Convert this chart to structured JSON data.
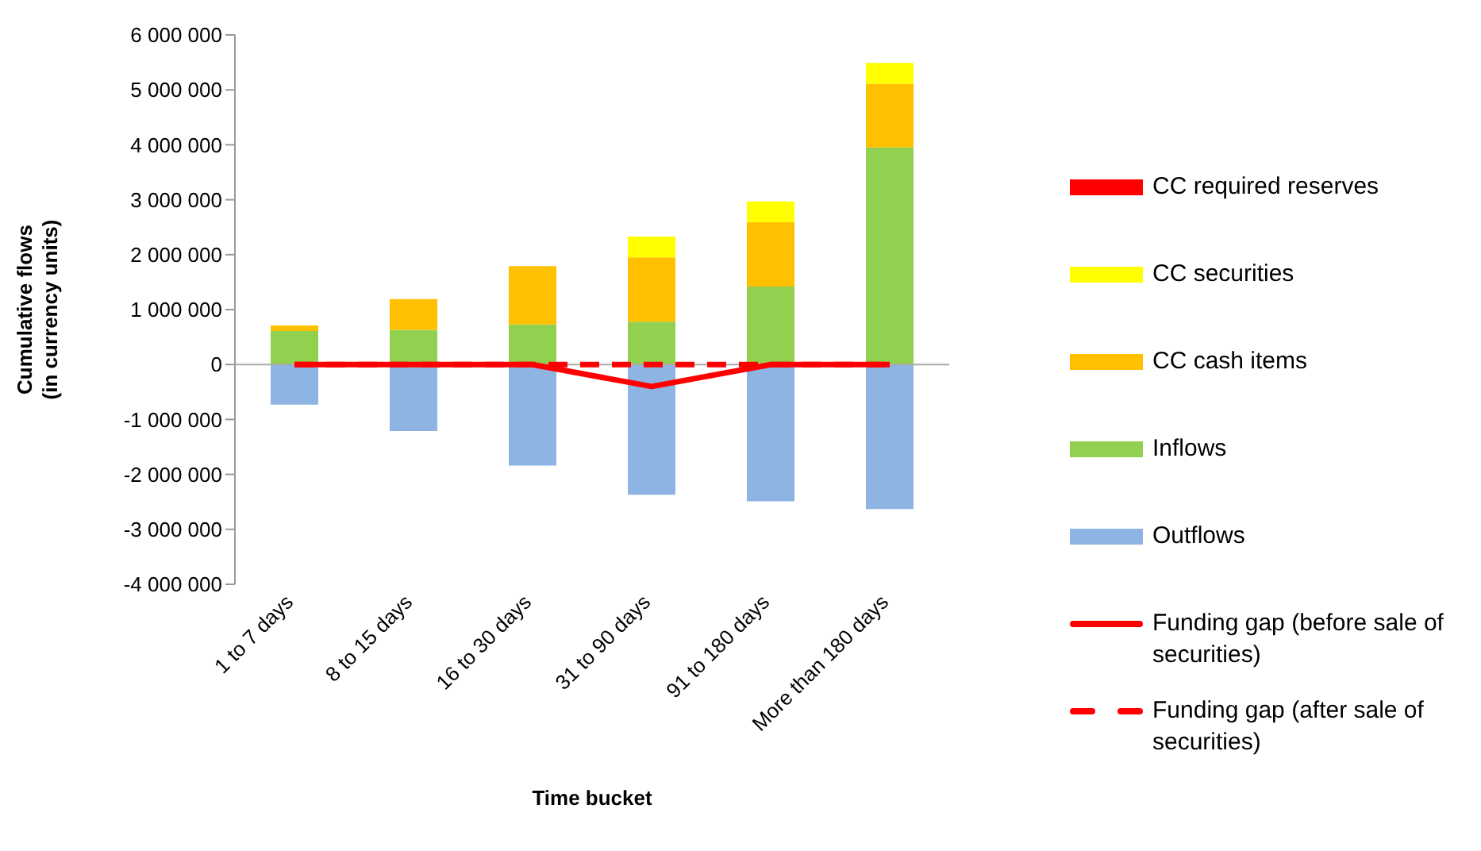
{
  "chart_data": {
    "type": "bar",
    "stacked": true,
    "xlabel": "Time bucket",
    "ylabel": "Cumulative flows (in currency units)",
    "categories": [
      "1 to 7 days",
      "8 to 15 days",
      "16 to 30 days",
      "31 to 90 days",
      "91 to 180 days",
      "More than 180 days"
    ],
    "series": [
      {
        "name": "Outflows",
        "color": "#8eb4e3",
        "values": [
          -730000,
          -1210000,
          -1840000,
          -2370000,
          -2490000,
          -2630000
        ]
      },
      {
        "name": "Inflows",
        "color": "#92d050",
        "values": [
          610000,
          630000,
          730000,
          780000,
          1420000,
          3950000
        ]
      },
      {
        "name": "CC cash items",
        "color": "#ffc000",
        "values": [
          100000,
          560000,
          1060000,
          1170000,
          1170000,
          1160000
        ]
      },
      {
        "name": "CC securities",
        "color": "#ffff00",
        "values": [
          0,
          0,
          0,
          380000,
          380000,
          380000
        ]
      },
      {
        "name": "CC required reserves",
        "color": "#ff0000",
        "values": [
          0,
          0,
          0,
          0,
          0,
          0
        ]
      },
      {
        "name": "Funding gap (before sale of securities)",
        "type": "line",
        "color": "#ff0000",
        "line_style": "solid",
        "values": [
          0,
          0,
          0,
          -400000,
          0,
          0
        ]
      },
      {
        "name": "Funding gap (after sale of securities)",
        "type": "line",
        "color": "#ff0000",
        "line_style": "dashed",
        "values": [
          0,
          0,
          0,
          0,
          0,
          0
        ]
      }
    ],
    "ylim": [
      -4000000,
      6000000
    ],
    "yticks": [
      {
        "value": -4000000,
        "label": "-4 000 000"
      },
      {
        "value": -3000000,
        "label": "-3 000 000"
      },
      {
        "value": -2000000,
        "label": "-2 000 000"
      },
      {
        "value": -1000000,
        "label": "-1 000 000"
      },
      0,
      {
        "value": 1000000,
        "label": "1 000 000"
      },
      {
        "value": 2000000,
        "label": "2 000 000"
      },
      {
        "value": 3000000,
        "label": "3 000 000"
      },
      {
        "value": 4000000,
        "label": "4 000 000"
      },
      {
        "value": 5000000,
        "label": "5 000 000"
      },
      {
        "value": 6000000,
        "label": "6 000 000"
      }
    ],
    "legend": "right",
    "marker": "none"
  }
}
